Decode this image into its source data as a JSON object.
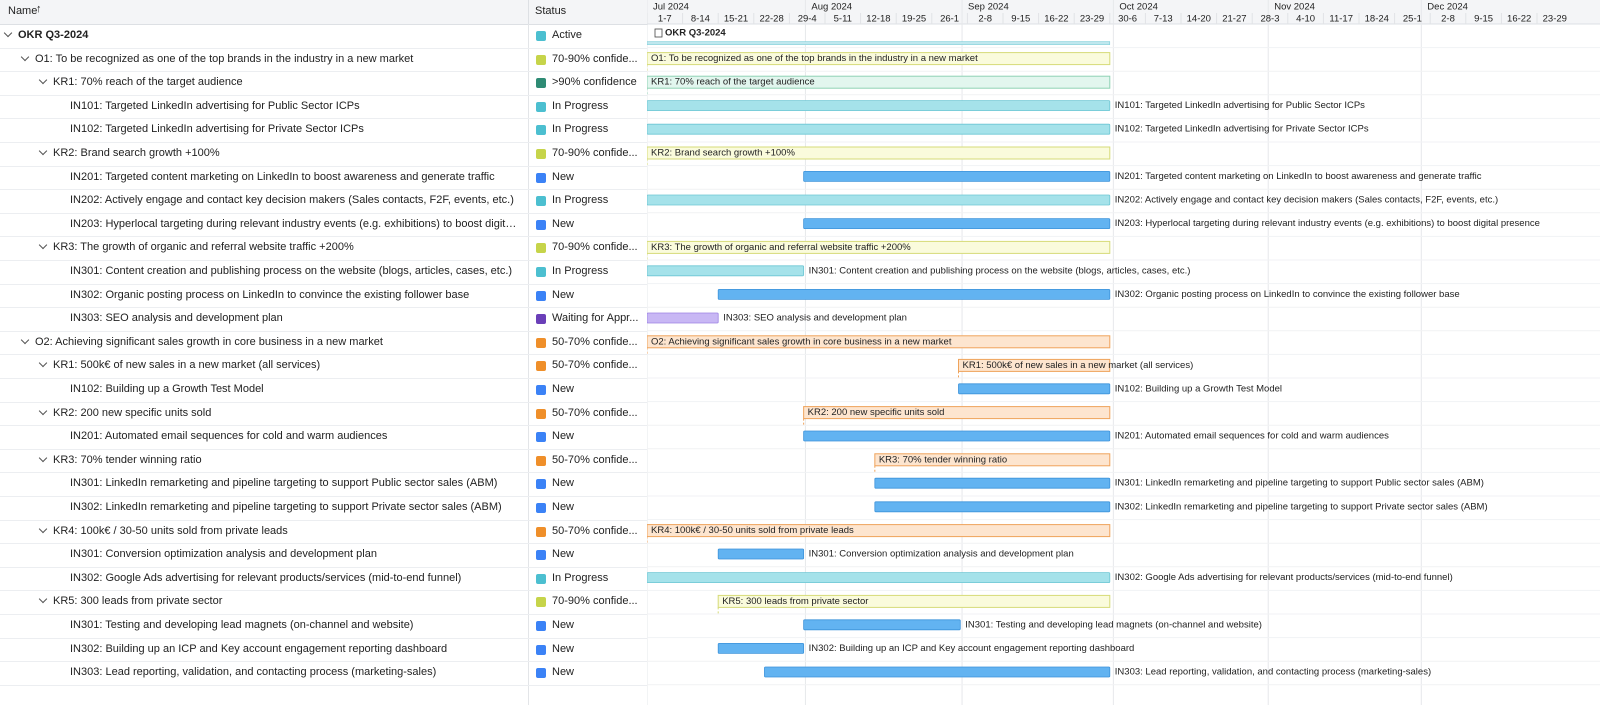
{
  "header": {
    "name_column": "Name",
    "status_column": "Status"
  },
  "timeline": {
    "months": [
      "Jul 2024",
      "Aug 2024",
      "Sep 2024",
      "Oct 2024",
      "Nov 2024",
      "Dec 2024"
    ],
    "weeks": [
      "1-7",
      "8-14",
      "15-21",
      "22-28",
      "29-4",
      "5-11",
      "12-18",
      "19-25",
      "26-1",
      "2-8",
      "9-15",
      "16-22",
      "23-29",
      "30-6",
      "7-13",
      "14-20",
      "21-27",
      "28-3",
      "4-10",
      "11-17",
      "18-24",
      "25-1",
      "2-8",
      "9-15",
      "16-22",
      "23-29"
    ]
  },
  "rows": [
    {
      "name": "OKR Q3-2024",
      "status": "Active"
    },
    {
      "name": "O1: To be recognized as one of the top brands in the industry in a new market",
      "status": "70-90% confide..."
    },
    {
      "name": "KR1: 70% reach of the target audience",
      "status": ">90% confidence"
    },
    {
      "name": "IN101: Targeted LinkedIn advertising for Public Sector ICPs",
      "status": "In Progress"
    },
    {
      "name": "IN102: Targeted LinkedIn advertising for Private Sector ICPs",
      "status": "In Progress"
    },
    {
      "name": "KR2: Brand search growth +100%",
      "status": "70-90% confide..."
    },
    {
      "name": "IN201: Targeted content marketing on LinkedIn to boost awareness and generate traffic",
      "status": "New"
    },
    {
      "name": "IN202: Actively engage and contact key decision makers (Sales contacts, F2F, events, etc.)",
      "status": "In Progress"
    },
    {
      "name": "IN203: Hyperlocal targeting during relevant industry events (e.g. exhibitions) to boost digital presence",
      "status": "New"
    },
    {
      "name": "KR3: The growth of organic and referral website traffic +200%",
      "status": "70-90% confide..."
    },
    {
      "name": "IN301: Content creation and publishing process on the website (blogs, articles, cases, etc.)",
      "status": "In Progress"
    },
    {
      "name": "IN302: Organic posting process on LinkedIn to convince the existing follower base",
      "status": "New"
    },
    {
      "name": "IN303: SEO analysis and development plan",
      "status": "Waiting for Appr..."
    },
    {
      "name": "O2: Achieving significant sales growth in core business in a new market",
      "status": "50-70% confide..."
    },
    {
      "name": "KR1: 500k€ of new sales in a new market (all services)",
      "status": "50-70% confide..."
    },
    {
      "name": "IN102: Building up a Growth Test Model",
      "status": "New"
    },
    {
      "name": "KR2: 200 new specific units sold",
      "status": "50-70% confide..."
    },
    {
      "name": "IN201: Automated email sequences for cold and warm audiences",
      "status": "New"
    },
    {
      "name": "KR3: 70% tender winning ratio",
      "status": "50-70% confide..."
    },
    {
      "name": "IN301: LinkedIn remarketing and pipeline targeting to support Public sector sales (ABM)",
      "status": "New"
    },
    {
      "name": "IN302: LinkedIn remarketing and pipeline targeting to support Private sector sales (ABM)",
      "status": "New"
    },
    {
      "name": "KR4: 100k€ / 30-50 units sold from private leads",
      "status": "50-70% confide..."
    },
    {
      "name": "IN301: Conversion optimization analysis and development plan",
      "status": "New"
    },
    {
      "name": "IN302: Google Ads advertising for relevant products/services (mid-to-end funnel)",
      "status": "In Progress"
    },
    {
      "name": "KR5: 300 leads from private sector",
      "status": "70-90% confide..."
    },
    {
      "name": "IN301: Testing and developing lead magnets (on-channel and website)",
      "status": "New"
    },
    {
      "name": "IN302: Building up an ICP and Key account engagement reporting dashboard",
      "status": "New"
    },
    {
      "name": "IN303: Lead reporting, validation, and contacting process (marketing-sales)",
      "status": "New"
    }
  ]
}
